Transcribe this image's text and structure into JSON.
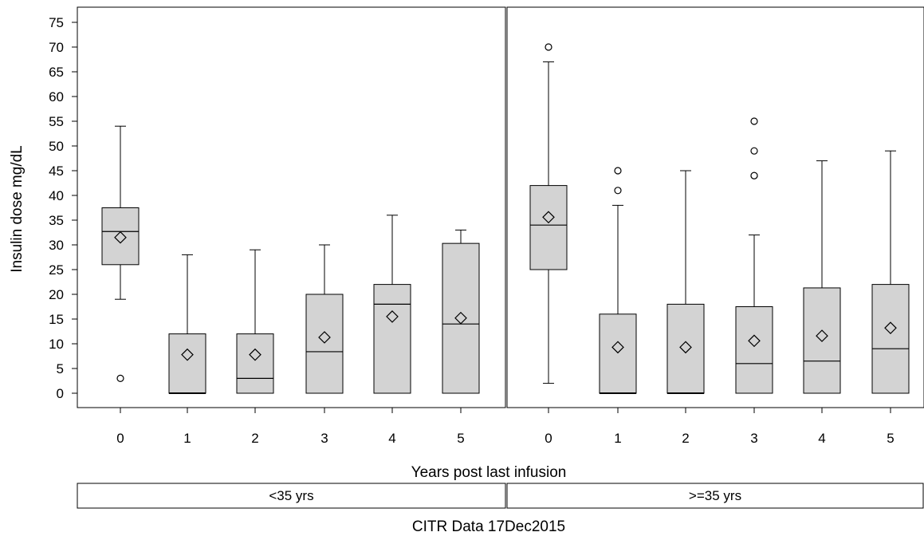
{
  "chart_data": {
    "type": "boxplot",
    "xlabel": "Years post last infusion",
    "ylabel": "Insulin dose mg/dL",
    "footnote": "CITR  Data 17Dec2015",
    "ylim": [
      -3,
      78
    ],
    "yticks": [
      0,
      5,
      10,
      15,
      20,
      25,
      30,
      35,
      40,
      45,
      50,
      55,
      60,
      65,
      70,
      75
    ],
    "categories": [
      "0",
      "1",
      "2",
      "3",
      "4",
      "5"
    ],
    "mean_marker": "diamond",
    "outlier_marker": "circle",
    "colors": {
      "box_fill": "#d3d3d3",
      "stroke": "#000000",
      "background": "#ffffff"
    },
    "panels": [
      {
        "label": "<35 yrs",
        "boxes": [
          {
            "x": "0",
            "min": 19,
            "q1": 26,
            "median": 32.7,
            "q3": 37.5,
            "max": 54,
            "mean": 31.5,
            "outliers": [
              3
            ]
          },
          {
            "x": "1",
            "min": 0,
            "q1": 0,
            "median": 0,
            "q3": 12,
            "max": 28,
            "mean": 7.8,
            "outliers": []
          },
          {
            "x": "2",
            "min": 0,
            "q1": 0,
            "median": 3,
            "q3": 12,
            "max": 29,
            "mean": 7.8,
            "outliers": []
          },
          {
            "x": "3",
            "min": 0,
            "q1": 0,
            "median": 8.4,
            "q3": 20,
            "max": 30,
            "mean": 11.3,
            "outliers": []
          },
          {
            "x": "4",
            "min": 0,
            "q1": 0,
            "median": 18,
            "q3": 22,
            "max": 36,
            "mean": 15.5,
            "outliers": []
          },
          {
            "x": "5",
            "min": 0,
            "q1": 0,
            "median": 14,
            "q3": 30.3,
            "max": 33,
            "mean": 15.2,
            "outliers": []
          }
        ]
      },
      {
        "label": ">=35 yrs",
        "boxes": [
          {
            "x": "0",
            "min": 2,
            "q1": 25,
            "median": 34,
            "q3": 42,
            "max": 67,
            "mean": 35.6,
            "outliers": [
              70
            ]
          },
          {
            "x": "1",
            "min": 0,
            "q1": 0,
            "median": 0,
            "q3": 16,
            "max": 38,
            "mean": 9.3,
            "outliers": [
              41,
              45
            ]
          },
          {
            "x": "2",
            "min": 0,
            "q1": 0,
            "median": 0,
            "q3": 18,
            "max": 45,
            "mean": 9.3,
            "outliers": []
          },
          {
            "x": "3",
            "min": 0,
            "q1": 0,
            "median": 6,
            "q3": 17.5,
            "max": 32,
            "mean": 10.6,
            "outliers": [
              44,
              44,
              49,
              55
            ]
          },
          {
            "x": "4",
            "min": 0,
            "q1": 0,
            "median": 6.5,
            "q3": 21.3,
            "max": 47,
            "mean": 11.6,
            "outliers": []
          },
          {
            "x": "5",
            "min": 0,
            "q1": 0,
            "median": 9,
            "q3": 22,
            "max": 49,
            "mean": 13.2,
            "outliers": []
          }
        ]
      }
    ]
  }
}
